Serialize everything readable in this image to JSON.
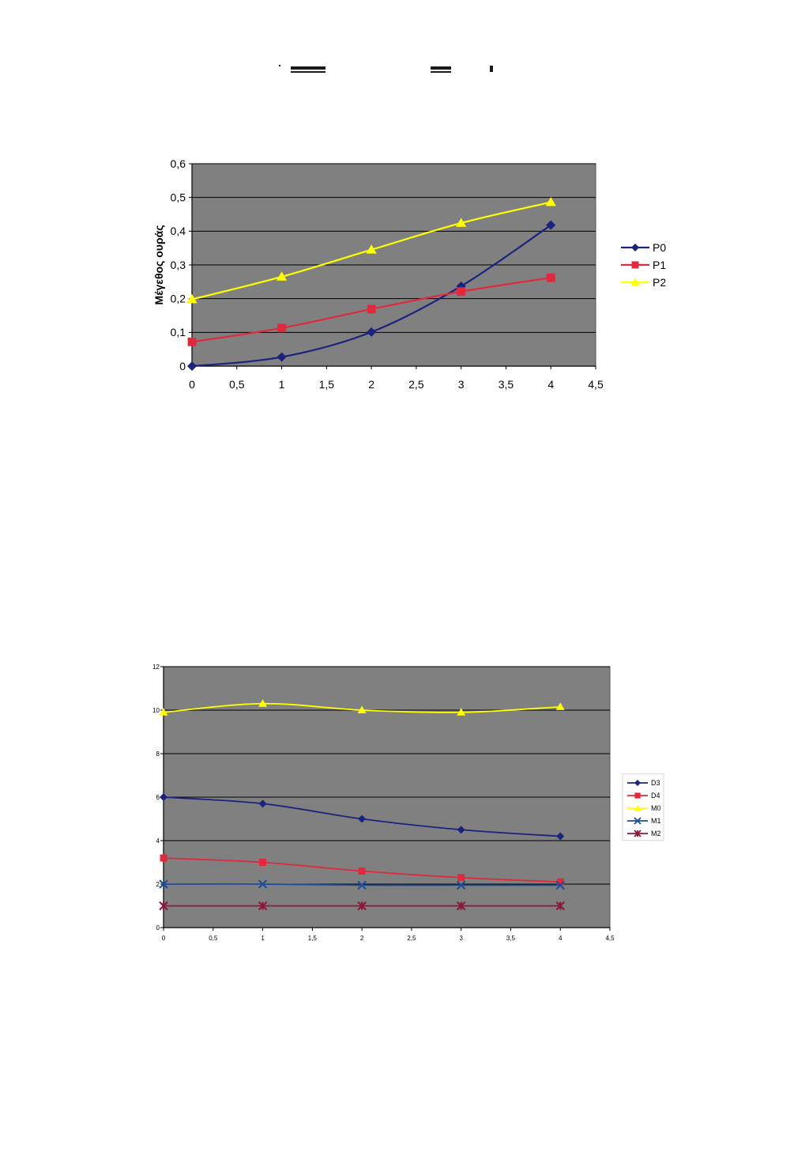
{
  "header_marks_color": "#1a1a1a",
  "chart_data": [
    {
      "type": "line",
      "ylabel": "Μέγεθος ουράς",
      "xlim": [
        0,
        4.5
      ],
      "ylim": [
        0,
        0.6
      ],
      "x_ticks": [
        "0",
        "0,5",
        "1",
        "1,5",
        "2",
        "2,5",
        "3",
        "3,5",
        "4",
        "4,5"
      ],
      "y_ticks": [
        "0",
        "0,1",
        "0,2",
        "0,3",
        "0,4",
        "0,5",
        "0,6"
      ],
      "grid": true,
      "plot_background": "#808080",
      "legend_position": "right",
      "x": [
        0,
        1,
        2,
        3,
        4
      ],
      "series": [
        {
          "name": "P0",
          "marker": "diamond",
          "color": "#1a237e",
          "values": [
            0,
            0.027,
            0.101,
            0.237,
            0.418
          ]
        },
        {
          "name": "P1",
          "marker": "square",
          "color": "#e0293c",
          "values": [
            0.072,
            0.113,
            0.169,
            0.221,
            0.262
          ]
        },
        {
          "name": "P2",
          "marker": "triangle",
          "color": "#ffff00",
          "values": [
            0.198,
            0.265,
            0.345,
            0.424,
            0.486
          ]
        }
      ]
    },
    {
      "type": "line",
      "xlim": [
        0,
        4.5
      ],
      "ylim": [
        0,
        12
      ],
      "x_ticks": [
        "0",
        "0,5",
        "1",
        "1,5",
        "2",
        "2,5",
        "3",
        "3,5",
        "4",
        "4,5"
      ],
      "y_ticks": [
        "0",
        "2",
        "4",
        "6",
        "8",
        "10",
        "12"
      ],
      "grid": true,
      "plot_background": "#808080",
      "legend_position": "right",
      "x": [
        0,
        1,
        2,
        3,
        4
      ],
      "series": [
        {
          "name": "D3",
          "marker": "diamond",
          "color": "#1a237e",
          "values": [
            6.0,
            5.7,
            5.0,
            4.5,
            4.2
          ]
        },
        {
          "name": "D4",
          "marker": "square",
          "color": "#e0293c",
          "values": [
            3.2,
            3.0,
            2.6,
            2.3,
            2.1
          ]
        },
        {
          "name": "M0",
          "marker": "triangle",
          "color": "#ffff00",
          "values": [
            9.9,
            10.3,
            10.0,
            9.9,
            10.15
          ]
        },
        {
          "name": "M1",
          "marker": "x",
          "color": "#1f4e9c",
          "values": [
            2.0,
            2.0,
            1.95,
            1.95,
            1.95
          ]
        },
        {
          "name": "M2",
          "marker": "star",
          "color": "#8b1a3a",
          "values": [
            1.0,
            1.0,
            1.0,
            1.0,
            1.0
          ]
        }
      ]
    }
  ]
}
